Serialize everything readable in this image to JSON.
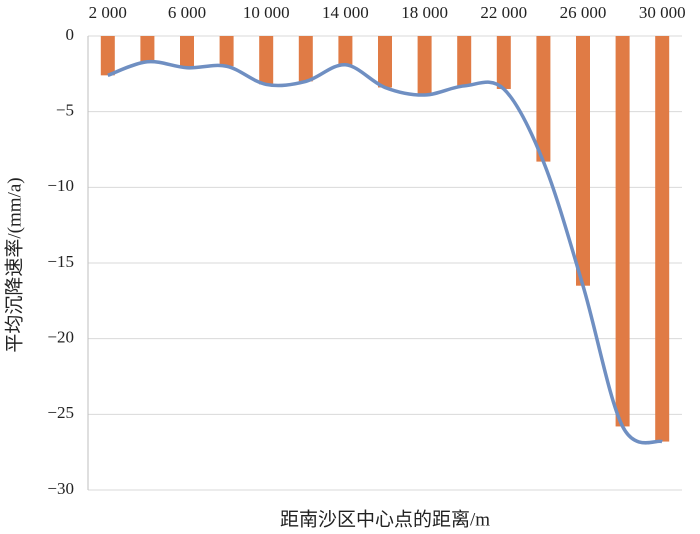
{
  "chart_data": {
    "type": "bar-line",
    "y_label": "平均沉降速率/(mm/a)",
    "x_label": "距南沙区中心点的距离/m",
    "categories": [
      "2 000",
      null,
      "6 000",
      null,
      "10 000",
      null,
      "14 000",
      null,
      "18 000",
      null,
      "22 000",
      null,
      "26 000",
      null,
      "30 000"
    ],
    "series": [
      {
        "type": "bar",
        "color": "#e07b45",
        "values": [
          -2.6,
          -1.7,
          -2.1,
          -2.0,
          -3.2,
          -3.0,
          -1.9,
          -3.4,
          -3.9,
          -3.3,
          -3.5,
          -8.3,
          -16.5,
          -25.8,
          -26.8
        ]
      },
      {
        "type": "line",
        "color": "#6f8fc2",
        "values": [
          -2.6,
          -1.7,
          -2.1,
          -2.0,
          -3.2,
          -3.0,
          -1.9,
          -3.4,
          -3.9,
          -3.3,
          -3.5,
          -8.3,
          -16.5,
          -25.8,
          -26.8
        ]
      }
    ],
    "ylim": [
      0,
      -30
    ],
    "yticks": [
      0,
      {
        "value": -5,
        "label": "−5"
      },
      {
        "value": -10,
        "label": "−10"
      },
      {
        "value": -15,
        "label": "−15"
      },
      {
        "value": -20,
        "label": "−20"
      },
      {
        "value": -25,
        "label": "−25"
      },
      {
        "value": -30,
        "label": "−30"
      }
    ],
    "grid": true,
    "x_axis_position": "top"
  }
}
